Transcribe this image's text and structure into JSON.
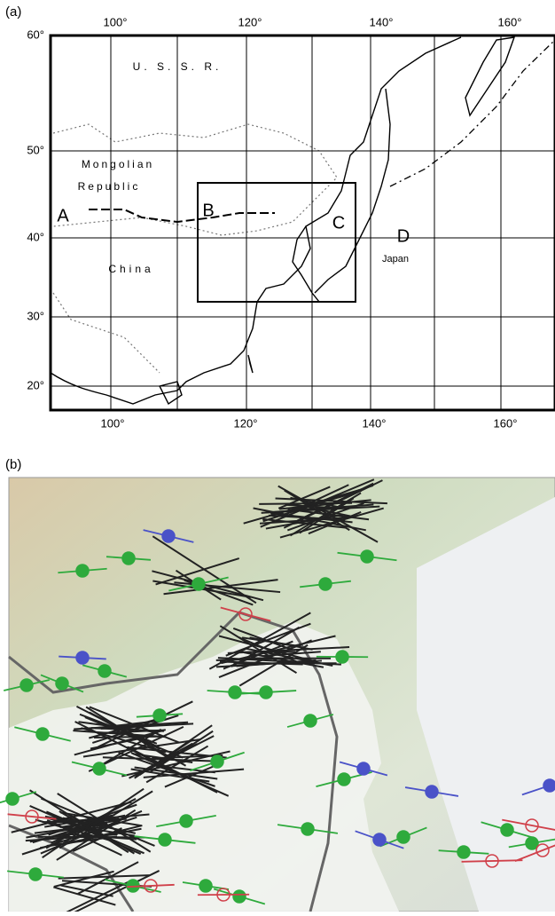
{
  "panel_a": {
    "label": "(a)",
    "lon_labels_top": [
      "100°",
      "120°",
      "140°",
      "160°"
    ],
    "lon_labels_bottom": [
      "100°",
      "120°",
      "140°",
      "160°"
    ],
    "lat_labels": [
      "60°",
      "50°",
      "40°",
      "30°",
      "20°"
    ],
    "places": [
      "U. S. S. R.",
      "Mongolian",
      "Republic",
      "China",
      "Japan"
    ],
    "points": [
      "A",
      "B",
      "C",
      "D"
    ]
  },
  "panel_b": {
    "label": "(b)"
  }
}
